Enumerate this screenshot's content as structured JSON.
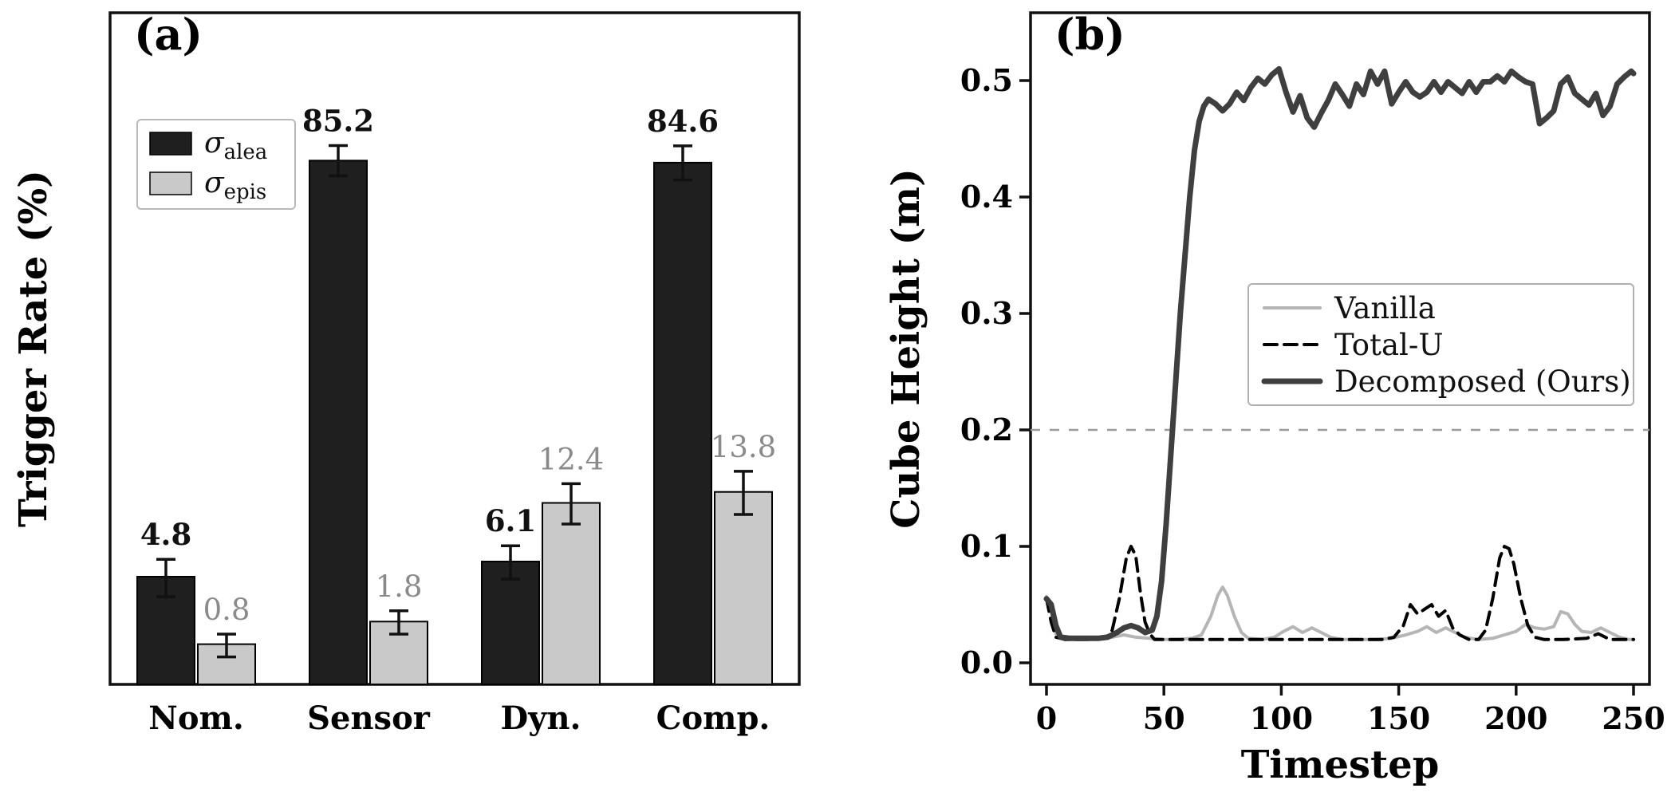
{
  "figure": {
    "background": "#ffffff"
  },
  "chart_data": [
    {
      "type": "bar",
      "panel_label": "(a)",
      "ylabel": "Trigger Rate (%)",
      "categories": [
        "Nom.",
        "Sensor",
        "Dyn.",
        "Comp."
      ],
      "ylim": [
        0,
        95
      ],
      "grid": false,
      "legend_position": "upper left",
      "value_labels": true,
      "series": [
        {
          "name": "sigma-alea",
          "legend_symbol": "σ",
          "legend_sub": "alea",
          "color": "#1f1f1f",
          "edge": "#000000",
          "label_style": "bold-dark",
          "values": [
            4.8,
            85.2,
            6.1,
            84.6
          ],
          "errors": [
            1.5,
            4.5,
            1.5,
            5.0
          ]
        },
        {
          "name": "sigma-epis",
          "legend_symbol": "σ",
          "legend_sub": "epis",
          "color": "#c9c9c9",
          "edge": "#000000",
          "label_style": "gray",
          "values": [
            0.8,
            1.8,
            12.4,
            13.8
          ],
          "errors": [
            0.4,
            0.6,
            2.5,
            2.8
          ]
        }
      ]
    },
    {
      "type": "line",
      "panel_label": "(b)",
      "xlabel": "Timestep",
      "ylabel": "Cube Height (m)",
      "xlim": [
        0,
        250
      ],
      "ylim": [
        0,
        0.5
      ],
      "xticks": [
        0,
        50,
        100,
        150,
        200,
        250
      ],
      "yticks": [
        0,
        0.1,
        0.2,
        0.3,
        0.4,
        0.5
      ],
      "grid": false,
      "threshold_line": {
        "y": 0.2,
        "color": "#9a9a9a",
        "style": "dashed"
      },
      "legend_position": "center right",
      "series": [
        {
          "name": "Vanilla",
          "color": "#b5b5b5",
          "style": "solid",
          "width": 4,
          "points": [
            [
              0,
              0.057
            ],
            [
              2,
              0.045
            ],
            [
              4,
              0.025
            ],
            [
              8,
              0.02
            ],
            [
              15,
              0.02
            ],
            [
              22,
              0.021
            ],
            [
              28,
              0.022
            ],
            [
              33,
              0.024
            ],
            [
              38,
              0.022
            ],
            [
              44,
              0.021
            ],
            [
              50,
              0.02
            ],
            [
              56,
              0.02
            ],
            [
              62,
              0.021
            ],
            [
              66,
              0.024
            ],
            [
              70,
              0.04
            ],
            [
              73,
              0.058
            ],
            [
              75,
              0.065
            ],
            [
              77,
              0.058
            ],
            [
              80,
              0.04
            ],
            [
              83,
              0.026
            ],
            [
              86,
              0.021
            ],
            [
              92,
              0.02
            ],
            [
              97,
              0.022
            ],
            [
              101,
              0.027
            ],
            [
              105,
              0.031
            ],
            [
              109,
              0.026
            ],
            [
              113,
              0.03
            ],
            [
              117,
              0.026
            ],
            [
              121,
              0.022
            ],
            [
              126,
              0.02
            ],
            [
              132,
              0.02
            ],
            [
              140,
              0.02
            ],
            [
              147,
              0.021
            ],
            [
              153,
              0.024
            ],
            [
              158,
              0.027
            ],
            [
              162,
              0.031
            ],
            [
              166,
              0.026
            ],
            [
              170,
              0.03
            ],
            [
              174,
              0.026
            ],
            [
              178,
              0.022
            ],
            [
              184,
              0.02
            ],
            [
              190,
              0.021
            ],
            [
              195,
              0.024
            ],
            [
              200,
              0.027
            ],
            [
              204,
              0.033
            ],
            [
              208,
              0.03
            ],
            [
              212,
              0.029
            ],
            [
              216,
              0.031
            ],
            [
              219,
              0.044
            ],
            [
              222,
              0.042
            ],
            [
              225,
              0.033
            ],
            [
              228,
              0.027
            ],
            [
              232,
              0.026
            ],
            [
              236,
              0.03
            ],
            [
              240,
              0.026
            ],
            [
              244,
              0.022
            ],
            [
              248,
              0.02
            ],
            [
              250,
              0.02
            ]
          ]
        },
        {
          "name": "Total-U",
          "color": "#000000",
          "style": "dashed",
          "width": 4,
          "points": [
            [
              0,
              0.055
            ],
            [
              2,
              0.035
            ],
            [
              4,
              0.022
            ],
            [
              8,
              0.02
            ],
            [
              14,
              0.02
            ],
            [
              20,
              0.02
            ],
            [
              25,
              0.021
            ],
            [
              28,
              0.028
            ],
            [
              31,
              0.055
            ],
            [
              34,
              0.09
            ],
            [
              36,
              0.1
            ],
            [
              38,
              0.092
            ],
            [
              40,
              0.06
            ],
            [
              42,
              0.035
            ],
            [
              44,
              0.025
            ],
            [
              46,
              0.02
            ],
            [
              55,
              0.02
            ],
            [
              70,
              0.02
            ],
            [
              85,
              0.02
            ],
            [
              100,
              0.02
            ],
            [
              115,
              0.02
            ],
            [
              130,
              0.02
            ],
            [
              143,
              0.02
            ],
            [
              148,
              0.022
            ],
            [
              152,
              0.032
            ],
            [
              155,
              0.05
            ],
            [
              158,
              0.042
            ],
            [
              161,
              0.046
            ],
            [
              164,
              0.05
            ],
            [
              167,
              0.04
            ],
            [
              170,
              0.045
            ],
            [
              173,
              0.03
            ],
            [
              176,
              0.024
            ],
            [
              180,
              0.02
            ],
            [
              184,
              0.02
            ],
            [
              187,
              0.028
            ],
            [
              190,
              0.055
            ],
            [
              193,
              0.09
            ],
            [
              195,
              0.1
            ],
            [
              197,
              0.098
            ],
            [
              199,
              0.085
            ],
            [
              202,
              0.055
            ],
            [
              205,
              0.032
            ],
            [
              208,
              0.022
            ],
            [
              212,
              0.02
            ],
            [
              220,
              0.02
            ],
            [
              230,
              0.021
            ],
            [
              235,
              0.025
            ],
            [
              240,
              0.02
            ],
            [
              250,
              0.02
            ]
          ]
        },
        {
          "name": "Decomposed (Ours)",
          "color": "#3f3f3f",
          "style": "solid",
          "width": 7,
          "points": [
            [
              0,
              0.055
            ],
            [
              2,
              0.05
            ],
            [
              4,
              0.032
            ],
            [
              6,
              0.022
            ],
            [
              10,
              0.021
            ],
            [
              14,
              0.021
            ],
            [
              18,
              0.021
            ],
            [
              22,
              0.021
            ],
            [
              26,
              0.022
            ],
            [
              30,
              0.026
            ],
            [
              33,
              0.03
            ],
            [
              36,
              0.032
            ],
            [
              39,
              0.03
            ],
            [
              42,
              0.026
            ],
            [
              45,
              0.028
            ],
            [
              47,
              0.04
            ],
            [
              49,
              0.07
            ],
            [
              51,
              0.12
            ],
            [
              53,
              0.18
            ],
            [
              55,
              0.24
            ],
            [
              57,
              0.3
            ],
            [
              59,
              0.35
            ],
            [
              61,
              0.4
            ],
            [
              63,
              0.44
            ],
            [
              65,
              0.465
            ],
            [
              67,
              0.478
            ],
            [
              69,
              0.484
            ],
            [
              72,
              0.48
            ],
            [
              75,
              0.474
            ],
            [
              78,
              0.48
            ],
            [
              81,
              0.49
            ],
            [
              84,
              0.483
            ],
            [
              87,
              0.494
            ],
            [
              90,
              0.502
            ],
            [
              93,
              0.497
            ],
            [
              96,
              0.505
            ],
            [
              99,
              0.51
            ],
            [
              102,
              0.49
            ],
            [
              105,
              0.473
            ],
            [
              108,
              0.487
            ],
            [
              111,
              0.468
            ],
            [
              114,
              0.46
            ],
            [
              117,
              0.472
            ],
            [
              120,
              0.483
            ],
            [
              123,
              0.497
            ],
            [
              126,
              0.488
            ],
            [
              129,
              0.478
            ],
            [
              132,
              0.497
            ],
            [
              135,
              0.488
            ],
            [
              138,
              0.508
            ],
            [
              141,
              0.497
            ],
            [
              144,
              0.508
            ],
            [
              147,
              0.48
            ],
            [
              150,
              0.49
            ],
            [
              153,
              0.499
            ],
            [
              156,
              0.49
            ],
            [
              159,
              0.486
            ],
            [
              162,
              0.49
            ],
            [
              165,
              0.499
            ],
            [
              168,
              0.49
            ],
            [
              171,
              0.499
            ],
            [
              174,
              0.494
            ],
            [
              177,
              0.489
            ],
            [
              180,
              0.499
            ],
            [
              183,
              0.49
            ],
            [
              186,
              0.499
            ],
            [
              189,
              0.499
            ],
            [
              192,
              0.504
            ],
            [
              195,
              0.499
            ],
            [
              198,
              0.508
            ],
            [
              201,
              0.503
            ],
            [
              204,
              0.499
            ],
            [
              207,
              0.497
            ],
            [
              210,
              0.463
            ],
            [
              213,
              0.468
            ],
            [
              216,
              0.474
            ],
            [
              219,
              0.497
            ],
            [
              222,
              0.503
            ],
            [
              225,
              0.489
            ],
            [
              228,
              0.484
            ],
            [
              231,
              0.479
            ],
            [
              234,
              0.489
            ],
            [
              237,
              0.47
            ],
            [
              240,
              0.478
            ],
            [
              243,
              0.497
            ],
            [
              246,
              0.503
            ],
            [
              249,
              0.508
            ],
            [
              250,
              0.506
            ]
          ]
        }
      ]
    }
  ]
}
